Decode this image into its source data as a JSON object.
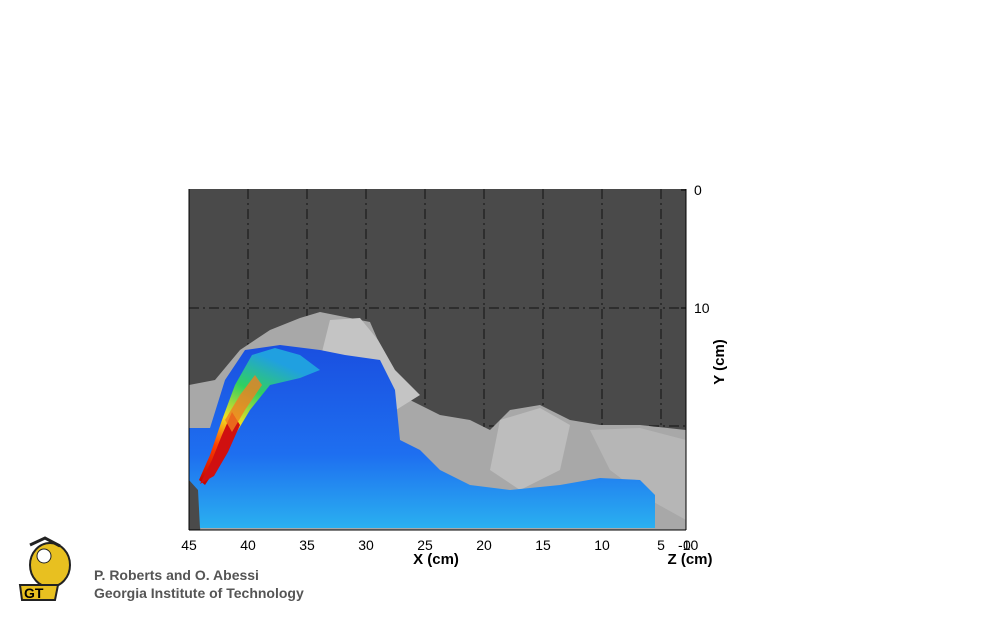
{
  "plot": {
    "x_axis": {
      "label": "X (cm)",
      "ticks": [
        45,
        40,
        35,
        30,
        25,
        20,
        15,
        10,
        5
      ]
    },
    "y_axis": {
      "label": "Y (cm)",
      "ticks": [
        0,
        10
      ]
    },
    "z_axis": {
      "label": "Z (cm)",
      "ticks": [
        -10,
        0
      ]
    }
  },
  "credits": [
    "P. Roberts and O. Abessi",
    "Georgia Institute of Technology"
  ]
}
